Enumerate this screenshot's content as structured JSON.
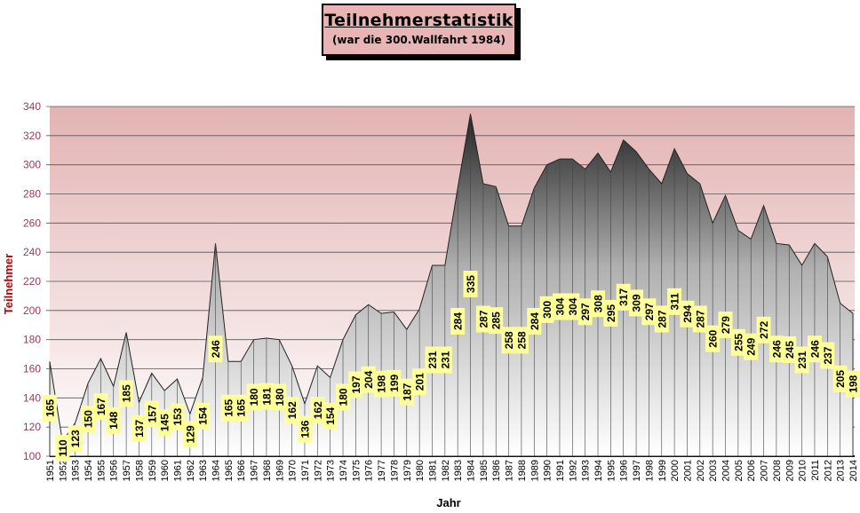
{
  "chart_data": {
    "type": "area",
    "title": "Teilnehmerstatistik",
    "subtitle": "(war die 300.Wallfahrt 1984)",
    "xlabel": "Jahr",
    "ylabel": "Teilnehmer",
    "ylim": [
      100,
      340
    ],
    "yticks": [
      100,
      120,
      140,
      160,
      180,
      200,
      220,
      240,
      260,
      280,
      300,
      320,
      340
    ],
    "grid": true,
    "data_labels": true,
    "colors": {
      "plot_background_top": "#e3b3b3",
      "area_top": "#2a2a2a",
      "area_bottom": "#ffffff",
      "label_background": "#ffff99",
      "ylabel": "#c00000",
      "ytick": "#9a3a5a"
    },
    "x": [
      1951,
      1952,
      1953,
      1954,
      1955,
      1956,
      1957,
      1958,
      1959,
      1960,
      1961,
      1962,
      1963,
      1964,
      1965,
      1966,
      1967,
      1968,
      1969,
      1970,
      1971,
      1972,
      1973,
      1974,
      1975,
      1976,
      1977,
      1978,
      1979,
      1980,
      1981,
      1982,
      1983,
      1984,
      1985,
      1986,
      1987,
      1988,
      1989,
      1990,
      1991,
      1992,
      1993,
      1994,
      1995,
      1996,
      1997,
      1998,
      1999,
      2000,
      2001,
      2002,
      2003,
      2004,
      2005,
      2006,
      2007,
      2008,
      2009,
      2010,
      2011,
      2012,
      2013,
      2014
    ],
    "values": [
      165,
      110,
      123,
      150,
      167,
      148,
      185,
      137,
      157,
      145,
      153,
      129,
      154,
      246,
      165,
      165,
      180,
      181,
      180,
      162,
      136,
      162,
      154,
      180,
      197,
      204,
      198,
      199,
      187,
      201,
      231,
      231,
      284,
      335,
      287,
      285,
      258,
      258,
      284,
      300,
      304,
      304,
      297,
      308,
      295,
      317,
      309,
      297,
      287,
      311,
      294,
      287,
      260,
      279,
      255,
      249,
      272,
      246,
      245,
      231,
      246,
      237,
      205,
      198
    ]
  }
}
